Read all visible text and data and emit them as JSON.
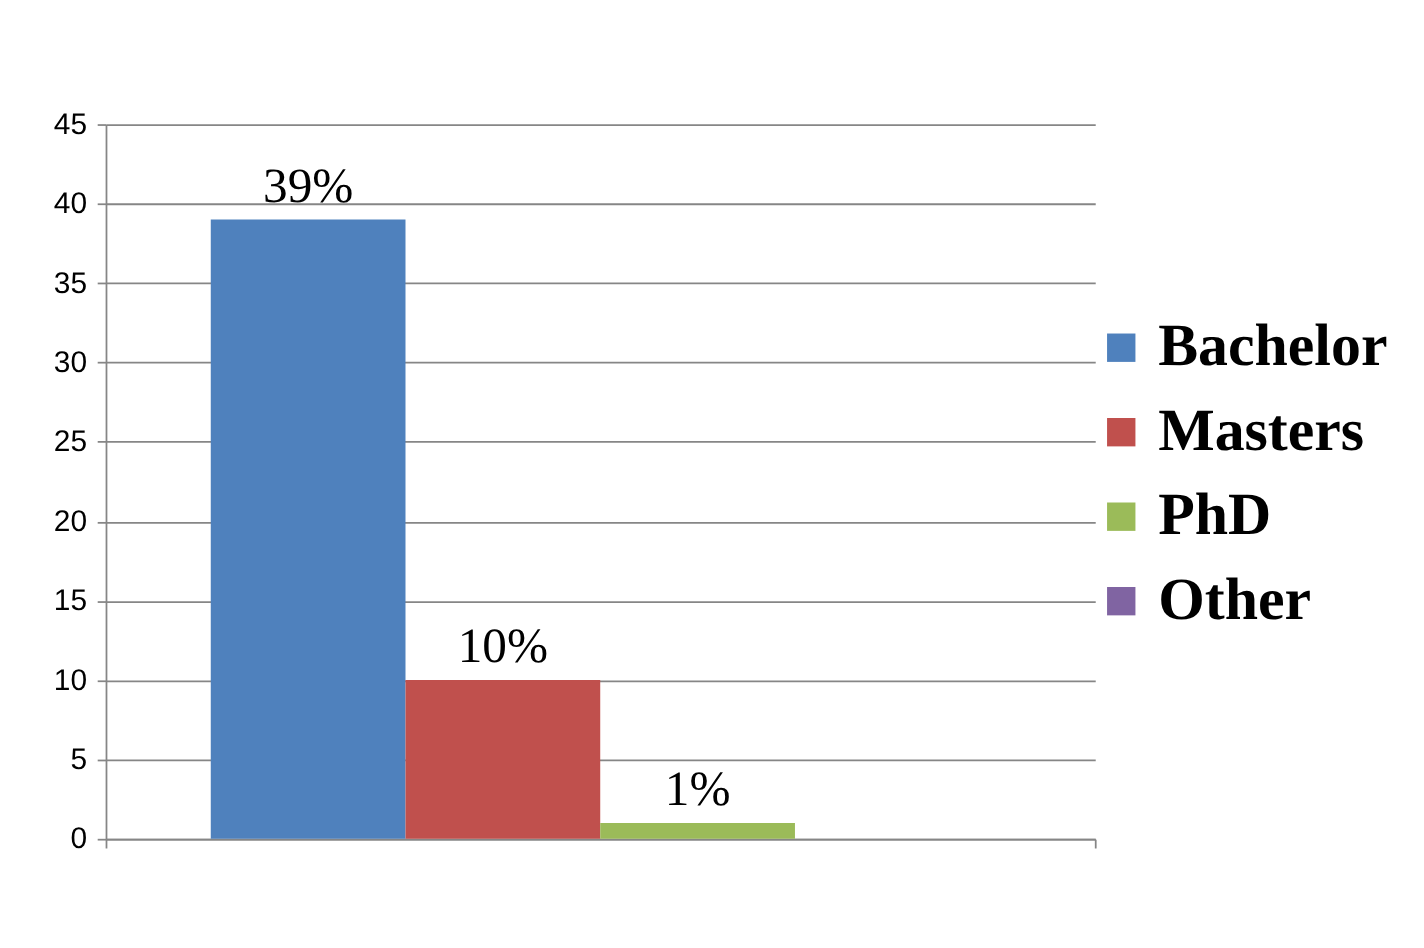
{
  "chart_data": {
    "type": "bar",
    "categories": [
      null
    ],
    "series": [
      {
        "name": "Bachelor",
        "color": "#4f81bd",
        "values": [
          39
        ],
        "value_labels": [
          "39%"
        ]
      },
      {
        "name": "Masters",
        "color": "#c0504d",
        "values": [
          10
        ],
        "value_labels": [
          "10%"
        ]
      },
      {
        "name": "PhD",
        "color": "#9bbb59",
        "values": [
          1
        ],
        "value_labels": [
          "1%"
        ]
      },
      {
        "name": "Other",
        "color": "#8064a2",
        "values": [
          null
        ]
      }
    ],
    "ylim": [
      0,
      45
    ],
    "yticks": [
      0,
      5,
      10,
      15,
      20,
      25,
      30,
      35,
      40,
      45
    ],
    "grid": "y",
    "legend": "right"
  }
}
